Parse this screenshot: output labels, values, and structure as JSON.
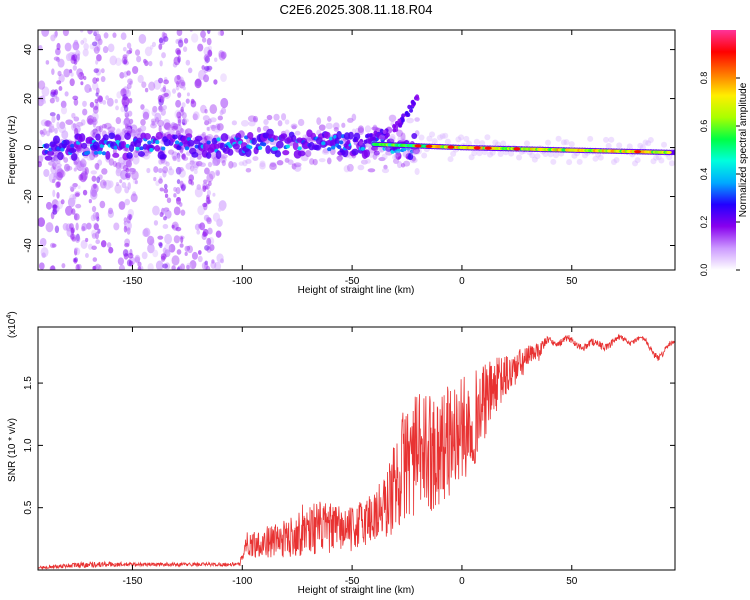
{
  "figure_title": "C2E6.2025.308.11.18.R04",
  "colors": {
    "snr_line": "#e83232",
    "axis": "#000000",
    "background": "#ffffff"
  },
  "chart_data": [
    {
      "type": "heatmap",
      "name": "spectrogram",
      "xlabel": "Height of straight line (km)",
      "ylabel": "Frequency (Hz)",
      "xlim": [
        -193,
        97
      ],
      "ylim": [
        -50,
        48
      ],
      "x_ticks": [
        -150,
        -100,
        -50,
        0,
        50
      ],
      "y_ticks": [
        -40,
        -20,
        0,
        20,
        40
      ],
      "colorbar": {
        "label": "Normalized spectral amplitude",
        "range": [
          0,
          1
        ],
        "ticks": [
          "0.0",
          "0.2",
          "0.4",
          "0.6",
          "0.8"
        ],
        "colormap": [
          "#ffffff",
          "#cc99ff",
          "#8800ee",
          "#2200ff",
          "#00aaff",
          "#00ffdd",
          "#00ff44",
          "#aaff00",
          "#ffee00",
          "#ff7700",
          "#ff0000",
          "#ff3399"
        ]
      },
      "description_features": {
        "main_track_frequency_hz": [
          {
            "x": -180,
            "f": 0
          },
          {
            "x": -60,
            "f": 2
          },
          {
            "x": 0,
            "f": 0
          },
          {
            "x": 95,
            "f": -2
          }
        ],
        "upper_branch": [
          {
            "x": -55,
            "f": 0
          },
          {
            "x": -30,
            "f": 8
          },
          {
            "x": -20,
            "f": 20
          }
        ],
        "strongest_region_km": [
          -40,
          95
        ]
      }
    },
    {
      "type": "line",
      "name": "snr",
      "xlabel": "Height of straight line (km)",
      "ylabel": "SNR (10 * v/v)",
      "y_scale_label": "(x10",
      "y_scale_exp": "4",
      "xlim": [
        -193,
        97
      ],
      "ylim": [
        0,
        1.95
      ],
      "x_ticks": [
        -150,
        -100,
        -50,
        0,
        50
      ],
      "y_ticks": [
        0.5,
        1.0,
        1.5
      ],
      "y_tick_labels": [
        "0.5",
        "1.0",
        "1.5"
      ],
      "envelope": [
        {
          "x": -193,
          "base": 0.01,
          "amp": 0.02
        },
        {
          "x": -170,
          "base": 0.02,
          "amp": 0.05
        },
        {
          "x": -150,
          "base": 0.03,
          "amp": 0.03
        },
        {
          "x": -101,
          "base": 0.03,
          "amp": 0.03
        },
        {
          "x": -99,
          "base": 0.1,
          "amp": 0.2
        },
        {
          "x": -80,
          "base": 0.1,
          "amp": 0.3
        },
        {
          "x": -70,
          "base": 0.12,
          "amp": 0.45
        },
        {
          "x": -50,
          "base": 0.15,
          "amp": 0.35
        },
        {
          "x": -35,
          "base": 0.22,
          "amp": 0.55
        },
        {
          "x": -25,
          "base": 0.4,
          "amp": 1.0
        },
        {
          "x": -10,
          "base": 0.5,
          "amp": 0.95
        },
        {
          "x": 5,
          "base": 0.8,
          "amp": 0.8
        },
        {
          "x": 15,
          "base": 1.25,
          "amp": 0.45
        },
        {
          "x": 30,
          "base": 1.6,
          "amp": 0.2
        },
        {
          "x": 40,
          "base": 1.85,
          "amp": 0.05
        },
        {
          "x": 60,
          "base": 1.8,
          "amp": 0.06
        },
        {
          "x": 80,
          "base": 1.86,
          "amp": 0.04
        },
        {
          "x": 90,
          "base": 1.72,
          "amp": 0.06
        },
        {
          "x": 97,
          "base": 1.82,
          "amp": 0.03
        }
      ]
    }
  ]
}
